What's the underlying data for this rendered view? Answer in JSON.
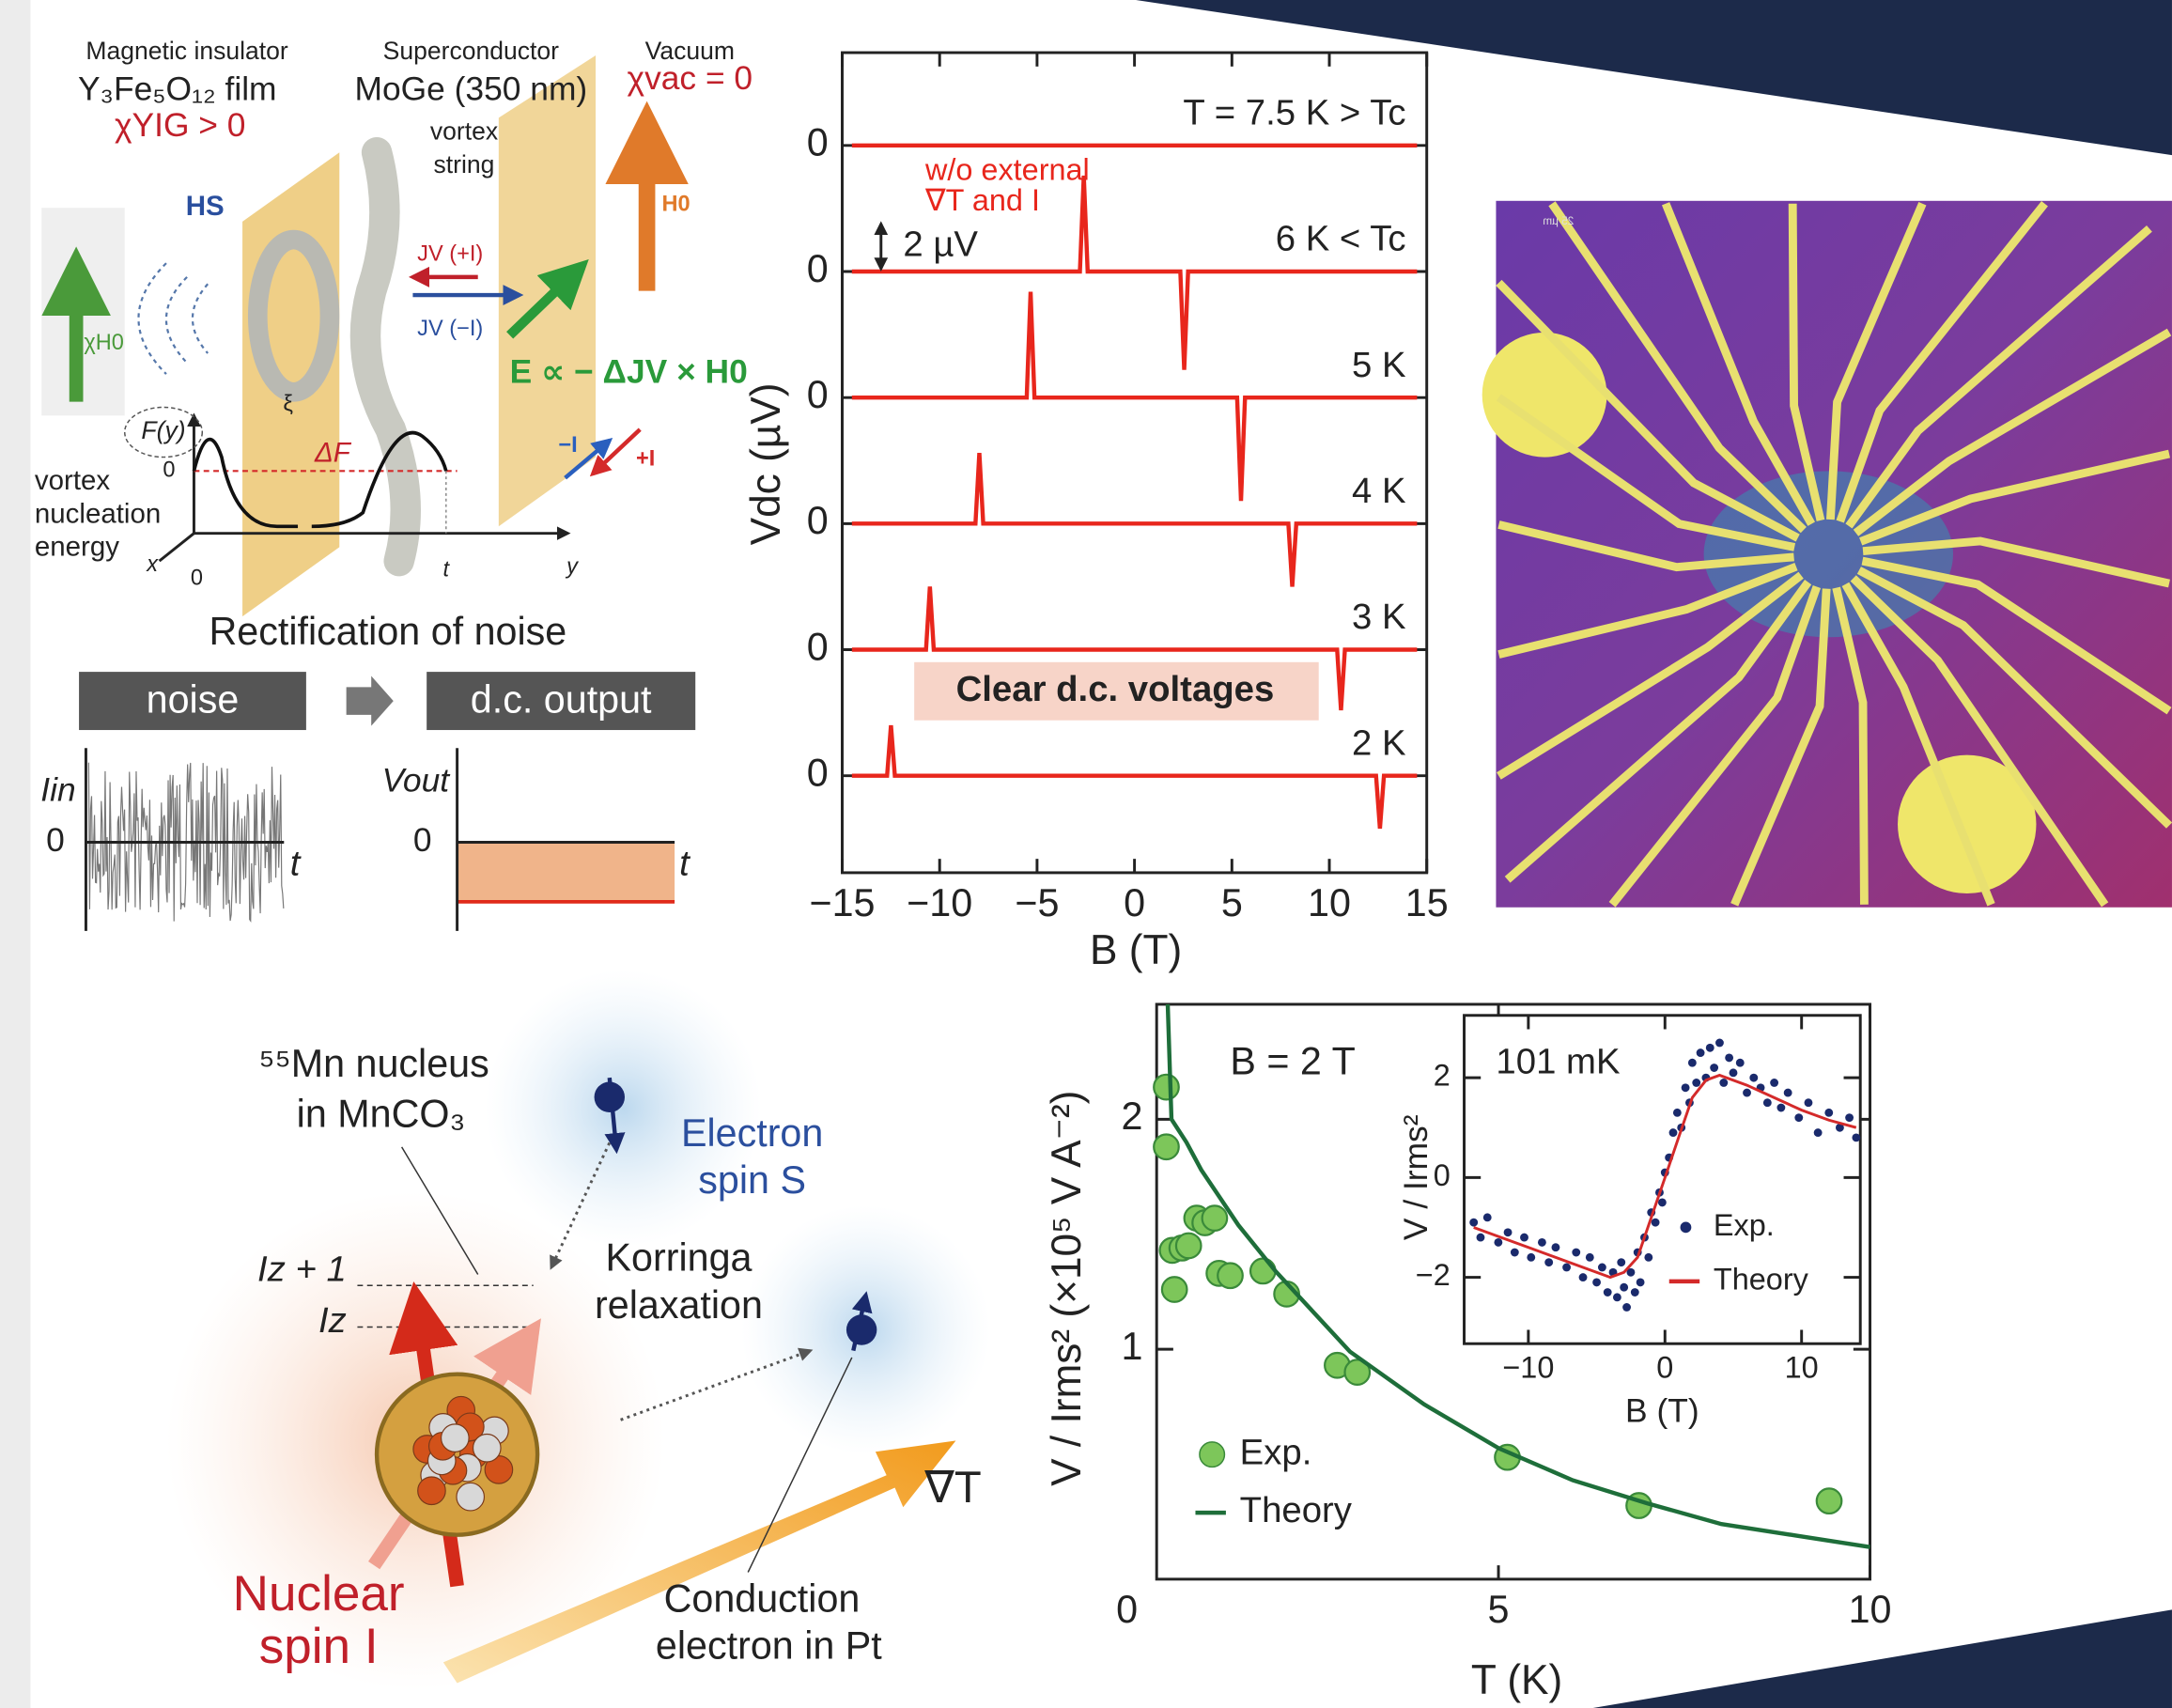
{
  "vortex_diagram": {
    "layer1_title": "Magnetic insulator",
    "layer1_material": "Y₃Fe₅O₁₂ film",
    "layer1_chi": "χYIG > 0",
    "layer2_title": "Superconductor",
    "layer2_material": "MoGe (350 nm)",
    "vortex_label_1": "vortex",
    "vortex_label_2": "string",
    "layer3_title": "Vacuum",
    "layer3_chi": "χvac = 0",
    "hs_label": "HS",
    "jv_plus": "JV (+I)",
    "jv_minus": "JV (−I)",
    "h0_label": "H0",
    "chi_h0_label": "χH0",
    "e_field": "E ∝ − ΔJV × H0",
    "xi": "ξ",
    "f_label": "F(y)",
    "f_zero": "0",
    "delta_f": "ΔF",
    "energy_1": "vortex",
    "energy_2": "nucleation",
    "energy_3": "energy",
    "axis_x": "x",
    "axis_origin": "0",
    "axis_t": "t",
    "axis_y": "y",
    "minus_i": "−I",
    "plus_i": "+I"
  },
  "noise_diagram": {
    "title": "Rectification of noise",
    "input_box": "noise",
    "output_box": "d.c. output",
    "input_axis": "Iin",
    "input_zero": "0",
    "input_t": "t",
    "output_axis": "Vout",
    "output_zero": "0",
    "output_t": "t"
  },
  "micrograph": {
    "scale_label": "25 µm"
  },
  "spin_diagram": {
    "nucleus_1": "⁵⁵Mn nucleus",
    "nucleus_2": "in MnCO₃",
    "electron_1": "Electron",
    "electron_2": "spin S",
    "korringa_1": "Korringa",
    "korringa_2": "relaxation",
    "level_upper": "Iz + 1",
    "level_lower": "Iz",
    "gradient": "∇T",
    "nuclear_1": "Nuclear",
    "nuclear_2": "spin I",
    "conduction_1": "Conduction",
    "conduction_2": "electron in Pt"
  },
  "chart_data": [
    {
      "type": "line",
      "offset": true,
      "xlabel": "B (T)",
      "ylabel": "Vdc (µV)",
      "xlim": [
        -15,
        15
      ],
      "xticks": [
        {
          "value": -15,
          "label": "−15"
        },
        {
          "value": -10,
          "label": "−10"
        },
        {
          "value": -5,
          "label": "−5"
        },
        0,
        5,
        10,
        15
      ],
      "ylim": [
        -2.5,
        2.5
      ],
      "yticks": [
        0
      ],
      "scale_bar": {
        "value": 2,
        "label": "2 µV"
      },
      "annotations": [
        "w/o external",
        "∇T and I",
        "Clear d.c. voltages"
      ],
      "series": [
        {
          "name": "T = 7.5 K > Tc",
          "color": "#e8261c",
          "x": [
            -14.5,
            -7,
            0,
            7,
            14.5
          ],
          "values": [
            0,
            0,
            0,
            0,
            0
          ]
        },
        {
          "name": "6 K < Tc",
          "color": "#e8261c",
          "x": [
            -14.5,
            -2.8,
            -2.6,
            -2.4,
            2.35,
            2.55,
            2.75,
            14.5
          ],
          "values": [
            0,
            0,
            3.8,
            0,
            0,
            -3.9,
            0,
            0
          ]
        },
        {
          "name": "5 K",
          "color": "#e8261c",
          "x": [
            -14.5,
            -5.53,
            -5.33,
            -5.13,
            5.27,
            5.47,
            5.67,
            14.5
          ],
          "values": [
            0,
            0,
            4.2,
            0,
            0,
            -4.1,
            0,
            0
          ]
        },
        {
          "name": "4 K",
          "color": "#e8261c",
          "x": [
            -14.5,
            -8.16,
            -7.96,
            -7.76,
            7.9,
            8.1,
            8.3,
            14.5
          ],
          "values": [
            0,
            0,
            2.8,
            0,
            0,
            -2.5,
            0,
            0
          ]
        },
        {
          "name": "3 K",
          "color": "#e8261c",
          "x": [
            -14.5,
            -10.7,
            -10.5,
            -10.3,
            10.4,
            10.6,
            10.8,
            14.5
          ],
          "values": [
            0,
            0,
            2.5,
            0,
            0,
            -2.4,
            0,
            0
          ]
        },
        {
          "name": "2 K",
          "color": "#e8261c",
          "x": [
            -14.5,
            -12.7,
            -12.5,
            -12.3,
            12.4,
            12.6,
            12.8,
            14.5
          ],
          "values": [
            0,
            0,
            2.0,
            0,
            0,
            -2.1,
            0,
            0
          ]
        }
      ]
    },
    {
      "type": "scatter",
      "xlabel": "T (K)",
      "ylabel": "V / Irms² (×10⁵ V A⁻²)",
      "annotation": "B = 2 T",
      "xlim": [
        0.4,
        10
      ],
      "xticks": [
        0,
        5,
        10
      ],
      "ylim": [
        0,
        2.5
      ],
      "yticks": [
        1,
        2
      ],
      "legend": "lower left",
      "series": [
        {
          "name": "Exp.",
          "type": "scatter",
          "color": "#7dc65a",
          "x": [
            0.53,
            0.53,
            0.61,
            0.64,
            0.74,
            0.83,
            0.94,
            1.05,
            1.18,
            1.24,
            1.39,
            1.83,
            2.15,
            2.83,
            3.1,
            5.12,
            6.89,
            9.45
          ],
          "values": [
            2.14,
            1.88,
            1.43,
            1.26,
            1.44,
            1.45,
            1.57,
            1.55,
            1.57,
            1.33,
            1.32,
            1.34,
            1.24,
            0.93,
            0.9,
            0.53,
            0.32,
            0.34
          ]
        },
        {
          "name": "Theory",
          "type": "line",
          "color": "#1e6e3a",
          "x": [
            0.55,
            0.6,
            0.8,
            1,
            1.5,
            2,
            3,
            4,
            5,
            6,
            7,
            8,
            9,
            10
          ],
          "values": [
            2.5,
            2.0,
            1.9,
            1.78,
            1.54,
            1.34,
            0.99,
            0.76,
            0.57,
            0.43,
            0.33,
            0.24,
            0.19,
            0.14
          ]
        }
      ]
    },
    {
      "type": "scatter",
      "inset": true,
      "xlabel": "B (T)",
      "ylabel": "V / Irms²",
      "annotation": "101 mK",
      "xlim": [
        -14.7,
        14.3
      ],
      "xticks": [
        {
          "value": -10,
          "label": "−10"
        },
        0,
        10
      ],
      "ylim": [
        -3.33,
        3.25
      ],
      "yticks": [
        {
          "value": -2,
          "label": "−2"
        },
        0,
        2
      ],
      "legend": "lower right",
      "series": [
        {
          "name": "Exp.",
          "type": "scatter",
          "color": "#1a2a6c",
          "x": [
            -14,
            -13.5,
            -13,
            -12.2,
            -11.5,
            -11,
            -10.3,
            -9.8,
            -9,
            -8.5,
            -8,
            -7.2,
            -6.5,
            -6,
            -5.5,
            -5,
            -4.6,
            -4.2,
            -3.8,
            -3.5,
            -3.2,
            -3,
            -2.8,
            -2.5,
            -2.2,
            -2,
            -1.8,
            -1.5,
            -1.2,
            -1,
            -0.7,
            -0.4,
            -0.2,
            0,
            0.3,
            0.6,
            0.9,
            1.2,
            1.5,
            1.8,
            2,
            2.3,
            2.6,
            3,
            3.3,
            3.6,
            4,
            4.3,
            4.7,
            5,
            5.5,
            6,
            6.5,
            7,
            7.5,
            8,
            8.5,
            9,
            9.8,
            10.5,
            11.2,
            12,
            12.8,
            13.5,
            14
          ],
          "values": [
            -0.9,
            -1.2,
            -0.8,
            -1.3,
            -1.1,
            -1.5,
            -1.2,
            -1.6,
            -1.3,
            -1.7,
            -1.4,
            -1.8,
            -1.5,
            -2.0,
            -1.6,
            -2.1,
            -1.8,
            -2.3,
            -1.9,
            -2.4,
            -1.7,
            -2.2,
            -2.6,
            -1.9,
            -2.3,
            -1.5,
            -2.1,
            -1.2,
            -1.6,
            -0.7,
            -0.9,
            -0.3,
            -0.5,
            0.1,
            0.4,
            0.9,
            1.3,
            1.0,
            1.8,
            1.5,
            2.3,
            1.9,
            2.5,
            2.0,
            2.6,
            2.2,
            2.7,
            1.9,
            2.4,
            2.1,
            2.3,
            1.7,
            2.0,
            1.8,
            1.5,
            1.9,
            1.4,
            1.7,
            1.2,
            1.5,
            0.9,
            1.3,
            1.0,
            1.2,
            0.8
          ]
        },
        {
          "name": "Theory",
          "type": "line",
          "color": "#d42a2a",
          "x": [
            -14,
            -12,
            -10,
            -8,
            -6,
            -4,
            -3,
            -2,
            -1,
            0,
            1,
            2,
            3,
            4,
            6,
            8,
            10,
            12,
            14
          ],
          "values": [
            -1.0,
            -1.2,
            -1.4,
            -1.6,
            -1.8,
            -2.0,
            -1.9,
            -1.6,
            -0.8,
            0,
            0.8,
            1.6,
            1.95,
            2.05,
            1.85,
            1.6,
            1.35,
            1.15,
            1.0
          ]
        }
      ]
    }
  ]
}
